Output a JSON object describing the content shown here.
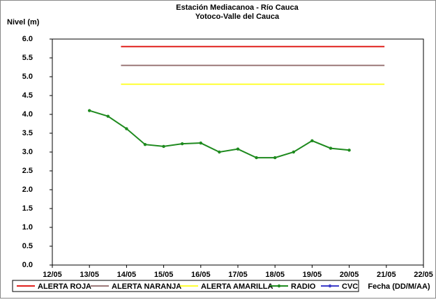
{
  "chart_data": {
    "type": "line",
    "title": "Estación Mediacanoa - Río Cauca",
    "subtitle": "Yotoco-Valle del Cauca",
    "y_label": "Nivel (m)",
    "x_label": "Fecha (DD/M/AA)",
    "xlim": [
      12,
      22
    ],
    "xticks": [
      {
        "value": 12,
        "label": "12/05"
      },
      {
        "value": 13,
        "label": "13/05"
      },
      {
        "value": 14,
        "label": "14/05"
      },
      {
        "value": 15,
        "label": "15/05"
      },
      {
        "value": 16,
        "label": "16/05"
      },
      {
        "value": 17,
        "label": "17/05"
      },
      {
        "value": 18,
        "label": "18/05"
      },
      {
        "value": 19,
        "label": "19/05"
      },
      {
        "value": 20,
        "label": "20/05"
      },
      {
        "value": 21,
        "label": "21/05"
      },
      {
        "value": 22,
        "label": "22/05"
      }
    ],
    "ylim": [
      0,
      6
    ],
    "yticks": [
      {
        "value": 0,
        "label": "0.0"
      },
      {
        "value": 0.5,
        "label": "0.5"
      },
      {
        "value": 1,
        "label": "1.0"
      },
      {
        "value": 1.5,
        "label": "1.5"
      },
      {
        "value": 2,
        "label": "2.0"
      },
      {
        "value": 2.5,
        "label": "2.5"
      },
      {
        "value": 3,
        "label": "3.0"
      },
      {
        "value": 3.5,
        "label": "3.5"
      },
      {
        "value": 4,
        "label": "4.0"
      },
      {
        "value": 4.5,
        "label": "4.5"
      },
      {
        "value": 5,
        "label": "5.0"
      },
      {
        "value": 5.5,
        "label": "5.5"
      },
      {
        "value": 6,
        "label": "6.0"
      }
    ],
    "series": [
      {
        "name": "ALERTA ROJA",
        "color": "#e0201c",
        "x": [
          13.85,
          20.95
        ],
        "values": [
          5.8,
          5.8
        ]
      },
      {
        "name": "ALERTA NARANJA",
        "color": "#9c7878",
        "x": [
          13.85,
          20.95
        ],
        "values": [
          5.3,
          5.3
        ]
      },
      {
        "name": "ALERTA AMARILLA",
        "color": "#ffff33",
        "x": [
          13.85,
          20.95
        ],
        "values": [
          4.8,
          4.8
        ]
      },
      {
        "name": "RADIO",
        "color": "#1e8a1e",
        "markers": true,
        "x": [
          13,
          13.5,
          14,
          14.5,
          15,
          15.5,
          16,
          16.5,
          17,
          17.5,
          18,
          18.5,
          19,
          19.5,
          20
        ],
        "values": [
          4.1,
          3.95,
          3.62,
          3.2,
          3.15,
          3.22,
          3.24,
          3.0,
          3.08,
          2.85,
          2.85,
          3.0,
          3.3,
          3.1,
          3.05
        ]
      },
      {
        "name": "CVC",
        "color": "#3c3cc8",
        "markers": true,
        "x": [],
        "values": []
      }
    ]
  }
}
